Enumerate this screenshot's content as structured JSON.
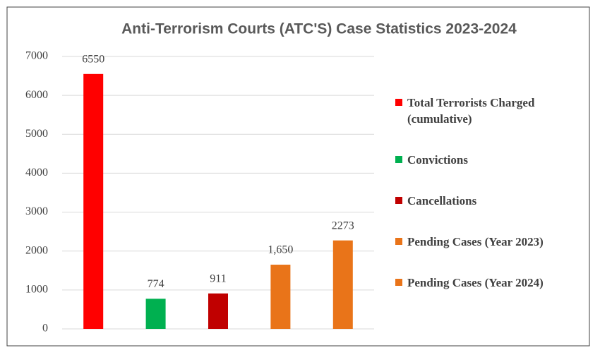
{
  "chart_data": {
    "type": "bar",
    "title": "Anti-Terrorism Courts (ATC'S) Case Statistics 2023-2024",
    "categories": [
      null
    ],
    "series": [
      {
        "name": "Total Terrorists Charged (cumulative)",
        "color": "#ff0000",
        "values": [
          6550
        ]
      },
      {
        "name": "Convictions",
        "color": "#00b050",
        "values": [
          774
        ]
      },
      {
        "name": "Cancellations",
        "color": "#c00000",
        "values": [
          911
        ]
      },
      {
        "name": "Pending Cases (Year 2023)",
        "color": "#e97419",
        "values": [
          1650
        ],
        "value_labels": [
          "1,650"
        ]
      },
      {
        "name": "Pending Cases (Year 2024)",
        "color": "#e97419",
        "values": [
          2273
        ]
      }
    ],
    "ylim": [
      0,
      7000
    ],
    "yticks": [
      0,
      1000,
      2000,
      3000,
      4000,
      5000,
      6000,
      7000
    ],
    "grid": true,
    "legend": "right"
  }
}
